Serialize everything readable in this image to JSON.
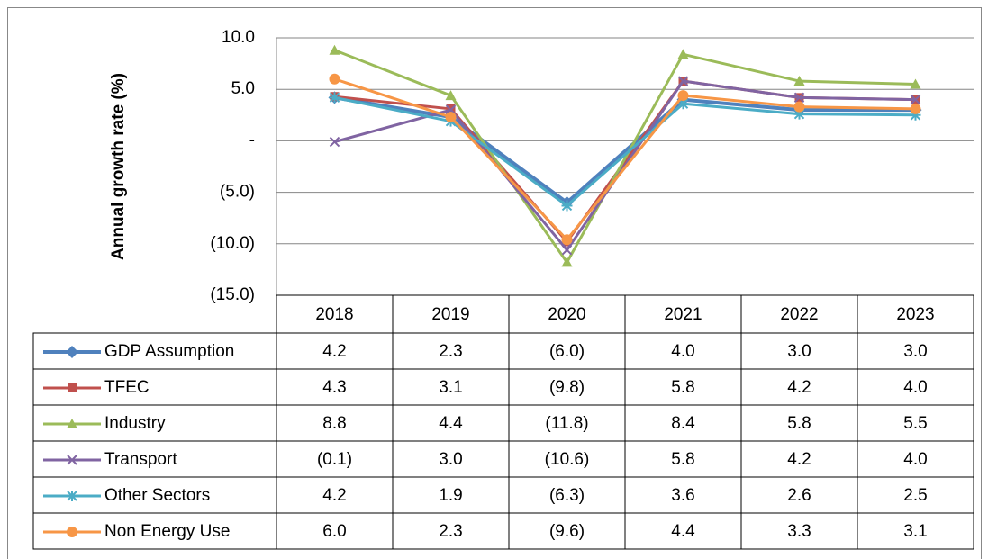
{
  "chart_data": {
    "type": "line",
    "y_label": "Annual growth rate (%)",
    "categories": [
      "2018",
      "2019",
      "2020",
      "2021",
      "2022",
      "2023"
    ],
    "ylim": [
      -15,
      10
    ],
    "yticks": [
      {
        "value": -15,
        "label": "(15.0)"
      },
      {
        "value": -10,
        "label": "(10.0)"
      },
      {
        "value": -5,
        "label": "(5.0)"
      },
      {
        "value": 0,
        "label": "-"
      },
      {
        "value": 5,
        "label": "5.0"
      },
      {
        "value": 10,
        "label": "10.0"
      }
    ],
    "grid": true,
    "data_table": true,
    "series": [
      {
        "name": "GDP Assumption",
        "color": "#4f81bd",
        "marker": "diamond",
        "width": 4,
        "values": [
          4.2,
          2.3,
          -6.0,
          4.0,
          3.0,
          3.0
        ],
        "value_labels": [
          "4.2",
          "2.3",
          "(6.0)",
          "4.0",
          "3.0",
          "3.0"
        ]
      },
      {
        "name": "TFEC",
        "color": "#c0504d",
        "marker": "square",
        "width": 3,
        "values": [
          4.3,
          3.1,
          -9.8,
          5.8,
          4.2,
          4.0
        ],
        "value_labels": [
          "4.3",
          "3.1",
          "(9.8)",
          "5.8",
          "4.2",
          "4.0"
        ]
      },
      {
        "name": "Industry",
        "color": "#9bbb59",
        "marker": "triangle",
        "width": 3,
        "values": [
          8.8,
          4.4,
          -11.8,
          8.4,
          5.8,
          5.5
        ],
        "value_labels": [
          "8.8",
          "4.4",
          "(11.8)",
          "8.4",
          "5.8",
          "5.5"
        ]
      },
      {
        "name": "Transport",
        "color": "#8064a2",
        "marker": "x",
        "width": 3,
        "values": [
          -0.1,
          3.0,
          -10.6,
          5.8,
          4.2,
          4.0
        ],
        "value_labels": [
          "(0.1)",
          "3.0",
          "(10.6)",
          "5.8",
          "4.2",
          "4.0"
        ]
      },
      {
        "name": "Other Sectors",
        "color": "#4bacc6",
        "marker": "star",
        "width": 3,
        "values": [
          4.2,
          1.9,
          -6.3,
          3.6,
          2.6,
          2.5
        ],
        "value_labels": [
          "4.2",
          "1.9",
          "(6.3)",
          "3.6",
          "2.6",
          "2.5"
        ]
      },
      {
        "name": "Non Energy Use",
        "color": "#f79646",
        "marker": "circle",
        "width": 3,
        "values": [
          6.0,
          2.3,
          -9.6,
          4.4,
          3.3,
          3.1
        ],
        "value_labels": [
          "6.0",
          "2.3",
          "(9.6)",
          "4.4",
          "3.3",
          "3.1"
        ]
      }
    ]
  }
}
